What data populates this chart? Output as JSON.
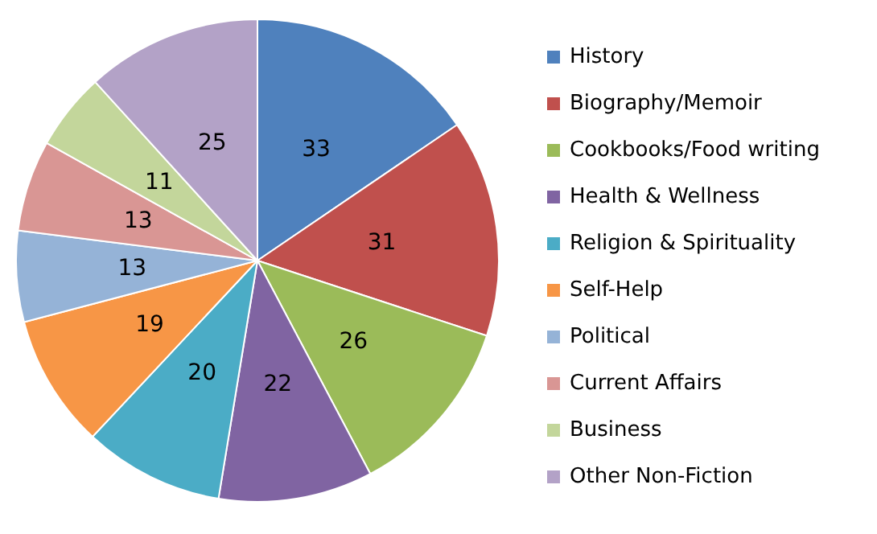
{
  "chart_data": {
    "type": "pie",
    "categories": [
      "History",
      "Biography/Memoir",
      "Cookbooks/Food writing",
      "Health & Wellness",
      "Religion & Spirituality",
      "Self-Help",
      "Political",
      "Current Affairs",
      "Business",
      "Other Non-Fiction"
    ],
    "values": [
      33,
      31,
      26,
      22,
      20,
      19,
      13,
      13,
      11,
      25
    ],
    "colors": [
      "#4f81bd",
      "#c0504d",
      "#9bbb59",
      "#8064a2",
      "#4bacc6",
      "#f79646",
      "#95b3d7",
      "#d99694",
      "#c3d69b",
      "#b3a2c7"
    ],
    "data_labels": true,
    "legend": "right"
  }
}
